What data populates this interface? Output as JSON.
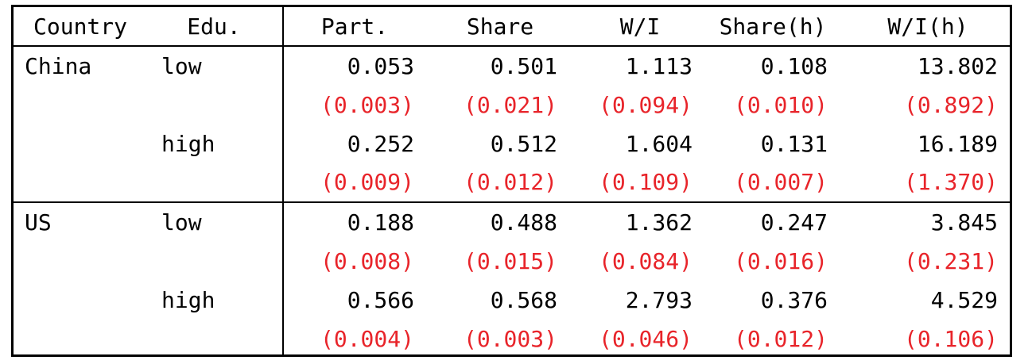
{
  "header": [
    "Country",
    "Edu.",
    "Part.",
    "Share",
    "W/I",
    "Share(h)",
    "W/I(h)"
  ],
  "groups": [
    {
      "country": "China",
      "rows": [
        {
          "edu": "low",
          "values": [
            "0.053",
            "0.501",
            "1.113",
            "0.108",
            "13.802"
          ],
          "se": [
            "(0.003)",
            "(0.021)",
            "(0.094)",
            "(0.010)",
            "(0.892)"
          ]
        },
        {
          "edu": "high",
          "values": [
            "0.252",
            "0.512",
            "1.604",
            "0.131",
            "16.189"
          ],
          "se": [
            "(0.009)",
            "(0.012)",
            "(0.109)",
            "(0.007)",
            "(1.370)"
          ]
        }
      ]
    },
    {
      "country": "US",
      "rows": [
        {
          "edu": "low",
          "values": [
            "0.188",
            "0.488",
            "1.362",
            "0.247",
            "3.845"
          ],
          "se": [
            "(0.008)",
            "(0.015)",
            "(0.084)",
            "(0.016)",
            "(0.231)"
          ]
        },
        {
          "edu": "high",
          "values": [
            "0.566",
            "0.568",
            "2.793",
            "0.376",
            "4.529"
          ],
          "se": [
            "(0.004)",
            "(0.003)",
            "(0.046)",
            "(0.012)",
            "(0.106)"
          ]
        }
      ]
    }
  ],
  "colors": {
    "standard_error": "#e8242a",
    "text": "#000000"
  }
}
